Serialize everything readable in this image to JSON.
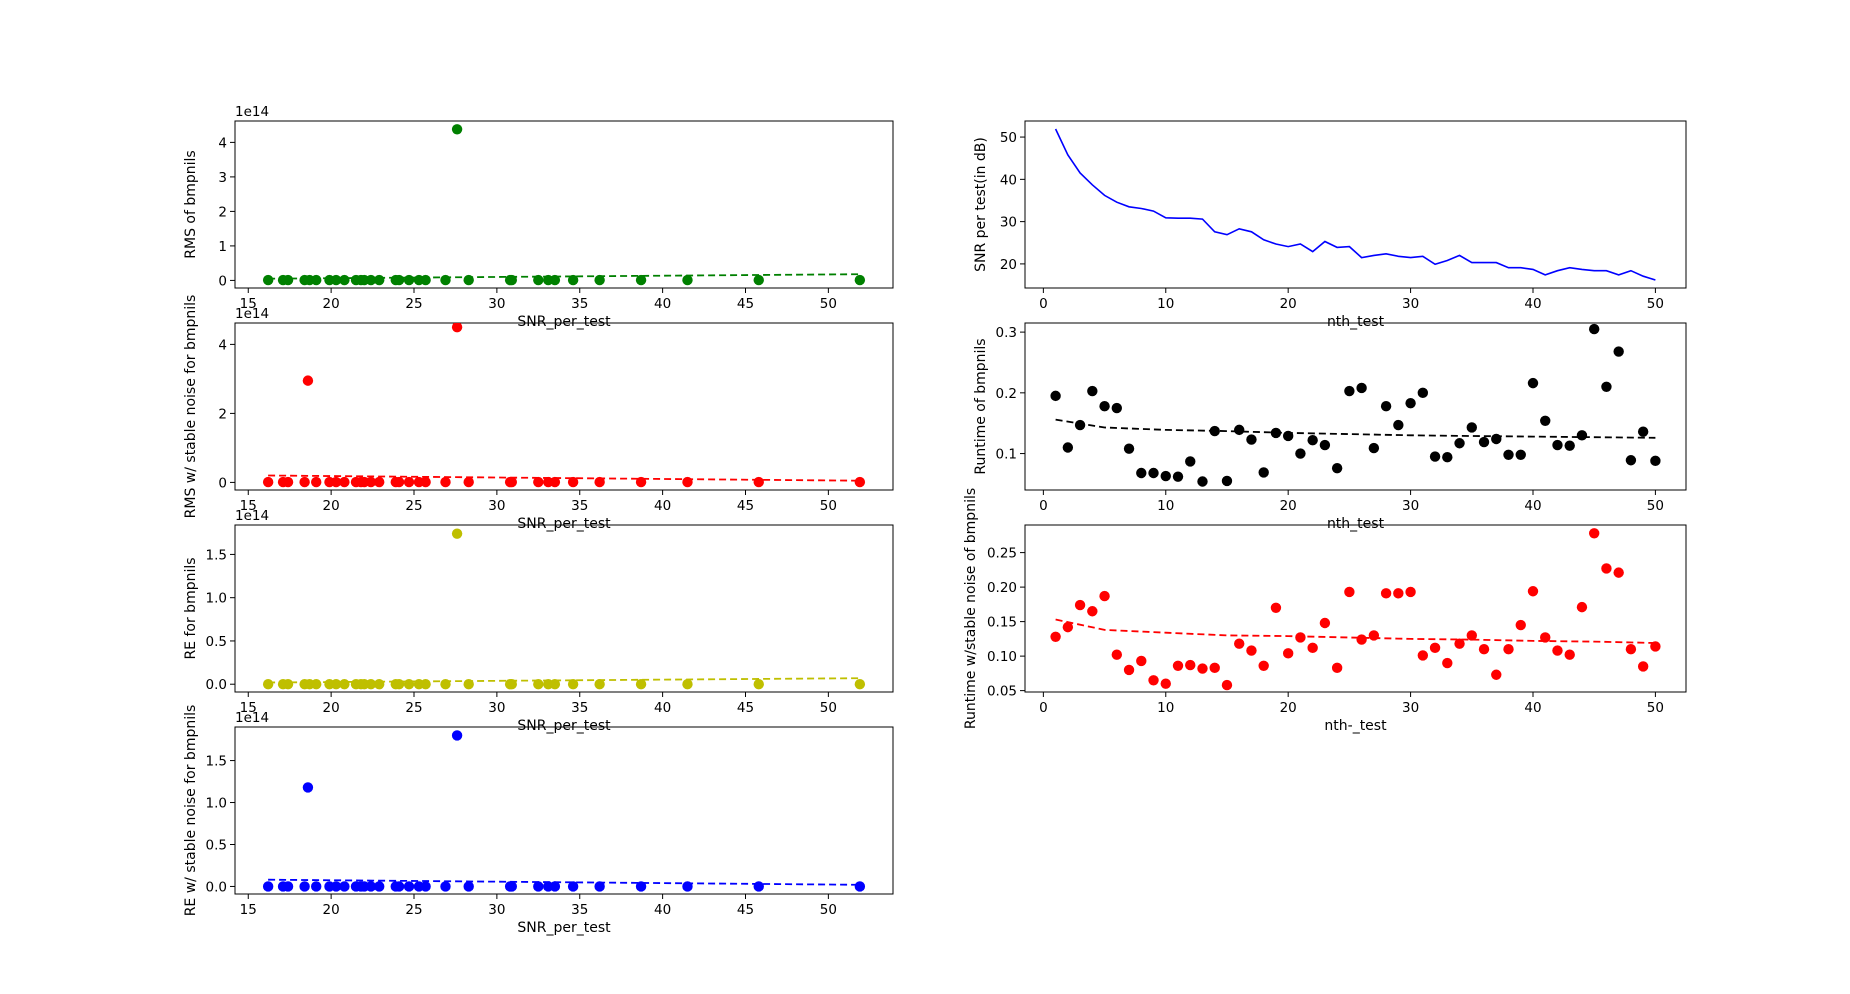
{
  "chart_data": [
    {
      "type": "scatter",
      "xlabel": "SNR_per_test",
      "ylabel": "RMS of bmpnils",
      "offset_text": "1e14",
      "xlim": [
        14.2,
        53.9
      ],
      "ylim": [
        -0.22,
        4.62
      ],
      "xticks": [
        15,
        20,
        25,
        30,
        35,
        40,
        45,
        50
      ],
      "yticks": [
        0,
        1,
        2,
        3,
        4
      ],
      "color": "#008000",
      "x": [
        16.2,
        17.1,
        17.4,
        18.4,
        18.7,
        19.1,
        19.9,
        20.3,
        20.8,
        21.5,
        21.8,
        22.0,
        22.4,
        22.9,
        23.9,
        24.1,
        24.7,
        25.3,
        25.7,
        26.9,
        27.6,
        28.3,
        30.8,
        30.9,
        32.5,
        33.1,
        33.5,
        34.6,
        36.2,
        38.7,
        41.5,
        45.8,
        51.9
      ],
      "y": [
        0.01,
        0.01,
        0.01,
        0.01,
        0.01,
        0.01,
        0.01,
        0.01,
        0.01,
        0.01,
        0.01,
        0.01,
        0.01,
        0.01,
        0.01,
        0.01,
        0.01,
        0.01,
        0.01,
        0.01,
        4.38,
        0.01,
        0.01,
        0.01,
        0.01,
        0.01,
        0.01,
        0.01,
        0.01,
        0.01,
        0.01,
        0.01,
        0.01
      ],
      "trend": {
        "x": [
          16.2,
          51.9
        ],
        "y": [
          0.05,
          0.18
        ]
      }
    },
    {
      "type": "scatter",
      "xlabel": "SNR_per_test",
      "ylabel": "RMS w/ stable noise for bmpnils",
      "offset_text": "1e14",
      "xlim": [
        14.2,
        53.9
      ],
      "ylim": [
        -0.22,
        4.62
      ],
      "xticks": [
        15,
        20,
        25,
        30,
        35,
        40,
        45,
        50
      ],
      "yticks": [
        0,
        2,
        4
      ],
      "color": "#ff0000",
      "x": [
        16.2,
        17.1,
        17.4,
        18.4,
        18.6,
        19.1,
        19.9,
        20.3,
        20.8,
        21.5,
        21.8,
        22.0,
        22.4,
        22.9,
        23.9,
        24.1,
        24.7,
        25.3,
        25.7,
        26.9,
        27.6,
        28.3,
        30.8,
        30.9,
        32.5,
        33.1,
        33.5,
        34.6,
        36.2,
        38.7,
        41.5,
        45.8,
        51.9
      ],
      "y": [
        0.01,
        0.01,
        0.01,
        0.01,
        2.95,
        0.01,
        0.01,
        0.01,
        0.01,
        0.01,
        0.01,
        0.01,
        0.01,
        0.01,
        0.01,
        0.01,
        0.01,
        0.01,
        0.01,
        0.01,
        4.5,
        0.01,
        0.01,
        0.01,
        0.01,
        0.01,
        0.01,
        0.01,
        0.01,
        0.01,
        0.01,
        0.01,
        0.01
      ],
      "trend": {
        "x": [
          16.2,
          51.9
        ],
        "y": [
          0.2,
          0.05
        ]
      }
    },
    {
      "type": "scatter",
      "xlabel": "SNR_per_test",
      "ylabel": "RE for bmpnils",
      "offset_text": "1e14",
      "xlim": [
        14.2,
        53.9
      ],
      "ylim": [
        -0.09,
        1.84
      ],
      "xticks": [
        15,
        20,
        25,
        30,
        35,
        40,
        45,
        50
      ],
      "yticks": [
        0.0,
        0.5,
        1.0,
        1.5
      ],
      "ytick_labels": [
        "0.0",
        "0.5",
        "1.0",
        "1.5"
      ],
      "color": "#bfbf00",
      "x": [
        16.2,
        17.1,
        17.4,
        18.4,
        18.7,
        19.1,
        19.9,
        20.3,
        20.8,
        21.5,
        21.8,
        22.0,
        22.4,
        22.9,
        23.9,
        24.1,
        24.7,
        25.3,
        25.7,
        26.9,
        27.6,
        28.3,
        30.8,
        30.9,
        32.5,
        33.1,
        33.5,
        34.6,
        36.2,
        38.7,
        41.5,
        45.8,
        51.9
      ],
      "y": [
        0.0,
        0.0,
        0.0,
        0.0,
        0.0,
        0.0,
        0.0,
        0.0,
        0.0,
        0.0,
        0.0,
        0.0,
        0.0,
        0.0,
        0.0,
        0.0,
        0.0,
        0.0,
        0.0,
        0.0,
        1.74,
        0.0,
        0.0,
        0.0,
        0.0,
        0.0,
        0.0,
        0.0,
        0.0,
        0.0,
        0.0,
        0.0,
        0.0
      ],
      "trend": {
        "x": [
          16.2,
          51.9
        ],
        "y": [
          0.02,
          0.07
        ]
      }
    },
    {
      "type": "scatter",
      "xlabel": "SNR_per_test",
      "ylabel": "RE w/ stable noise for bmpnils",
      "offset_text": "1e14",
      "xlim": [
        14.2,
        53.9
      ],
      "ylim": [
        -0.09,
        1.9
      ],
      "xticks": [
        15,
        20,
        25,
        30,
        35,
        40,
        45,
        50
      ],
      "yticks": [
        0.0,
        0.5,
        1.0,
        1.5
      ],
      "ytick_labels": [
        "0.0",
        "0.5",
        "1.0",
        "1.5"
      ],
      "color": "#0000ff",
      "x": [
        16.2,
        17.1,
        17.4,
        18.4,
        18.6,
        19.1,
        19.9,
        20.3,
        20.8,
        21.5,
        21.8,
        22.0,
        22.4,
        22.9,
        23.9,
        24.1,
        24.7,
        25.3,
        25.7,
        26.9,
        27.6,
        28.3,
        30.8,
        30.9,
        32.5,
        33.1,
        33.5,
        34.6,
        36.2,
        38.7,
        41.5,
        45.8,
        51.9
      ],
      "y": [
        0.0,
        0.0,
        0.0,
        0.0,
        1.18,
        0.0,
        0.0,
        0.0,
        0.0,
        0.0,
        0.0,
        0.0,
        0.0,
        0.0,
        0.0,
        0.0,
        0.0,
        0.0,
        0.0,
        0.0,
        1.8,
        0.0,
        0.0,
        0.0,
        0.0,
        0.0,
        0.0,
        0.0,
        0.0,
        0.0,
        0.0,
        0.0,
        0.0
      ],
      "trend": {
        "x": [
          16.2,
          51.9
        ],
        "y": [
          0.08,
          0.02
        ]
      }
    },
    {
      "type": "line",
      "xlabel": "nth_test",
      "ylabel": "SNR per test(in dB)",
      "xlim": [
        -1.5,
        52.5
      ],
      "ylim": [
        14.3,
        53.8
      ],
      "xticks": [
        0,
        10,
        20,
        30,
        40,
        50
      ],
      "yticks": [
        20,
        30,
        40,
        50
      ],
      "color": "#0000ff",
      "x": [
        1,
        2,
        3,
        4,
        5,
        6,
        7,
        8,
        9,
        10,
        11,
        12,
        13,
        14,
        15,
        16,
        17,
        18,
        19,
        20,
        21,
        22,
        23,
        24,
        25,
        26,
        27,
        28,
        29,
        30,
        31,
        32,
        33,
        34,
        35,
        36,
        37,
        38,
        39,
        40,
        41,
        42,
        43,
        44,
        45,
        46,
        47,
        48,
        49,
        50
      ],
      "y": [
        51.9,
        45.8,
        41.5,
        38.7,
        36.2,
        34.6,
        33.5,
        33.1,
        32.5,
        30.9,
        30.8,
        30.8,
        30.6,
        27.6,
        26.9,
        28.3,
        27.6,
        25.7,
        24.7,
        24.1,
        24.7,
        22.9,
        25.3,
        23.9,
        24.1,
        21.5,
        22.0,
        22.4,
        21.8,
        21.5,
        21.8,
        19.9,
        20.8,
        22.0,
        20.3,
        20.3,
        20.3,
        19.1,
        19.1,
        18.7,
        17.4,
        18.4,
        19.1,
        18.7,
        18.4,
        18.4,
        17.4,
        18.4,
        17.1,
        16.2
      ]
    },
    {
      "type": "scatter",
      "xlabel": "nth_test",
      "ylabel": "Runtime of bmpnils",
      "xlim": [
        -1.5,
        52.5
      ],
      "ylim": [
        0.04,
        0.315
      ],
      "xticks": [
        0,
        10,
        20,
        30,
        40,
        50
      ],
      "yticks": [
        0.1,
        0.2,
        0.3
      ],
      "ytick_labels": [
        "0.1",
        "0.2",
        "0.3"
      ],
      "color": "#000000",
      "x": [
        1,
        2,
        3,
        4,
        5,
        6,
        7,
        8,
        9,
        10,
        11,
        12,
        13,
        14,
        15,
        16,
        17,
        18,
        19,
        20,
        21,
        22,
        23,
        24,
        25,
        26,
        27,
        28,
        29,
        30,
        31,
        32,
        33,
        34,
        35,
        36,
        37,
        38,
        39,
        40,
        41,
        42,
        43,
        44,
        45,
        46,
        47,
        48,
        49,
        50
      ],
      "y": [
        0.195,
        0.11,
        0.147,
        0.203,
        0.178,
        0.175,
        0.108,
        0.068,
        0.068,
        0.063,
        0.062,
        0.087,
        0.054,
        0.137,
        0.055,
        0.139,
        0.123,
        0.069,
        0.134,
        0.129,
        0.1,
        0.122,
        0.114,
        0.076,
        0.203,
        0.208,
        0.109,
        0.178,
        0.147,
        0.183,
        0.2,
        0.095,
        0.094,
        0.117,
        0.143,
        0.119,
        0.124,
        0.098,
        0.098,
        0.216,
        0.154,
        0.114,
        0.113,
        0.13,
        0.305,
        0.21,
        0.268,
        0.089,
        0.136,
        0.088
      ],
      "trend": {
        "x": [
          1,
          5,
          10,
          15,
          20,
          25,
          30,
          35,
          40,
          45,
          50
        ],
        "y": [
          0.156,
          0.143,
          0.139,
          0.137,
          0.134,
          0.132,
          0.13,
          0.129,
          0.128,
          0.127,
          0.126
        ]
      }
    },
    {
      "type": "scatter",
      "xlabel": "nth-_test",
      "ylabel": "Runtime w/stable noise of bmpnils",
      "xlim": [
        -1.5,
        52.5
      ],
      "ylim": [
        0.048,
        0.29
      ],
      "xticks": [
        0,
        10,
        20,
        30,
        40,
        50
      ],
      "yticks": [
        0.05,
        0.1,
        0.15,
        0.2,
        0.25
      ],
      "ytick_labels": [
        "0.05",
        "0.10",
        "0.15",
        "0.20",
        "0.25"
      ],
      "color": "#ff0000",
      "x": [
        1,
        2,
        3,
        4,
        5,
        6,
        7,
        8,
        9,
        10,
        11,
        12,
        13,
        14,
        15,
        16,
        17,
        18,
        19,
        20,
        21,
        22,
        23,
        24,
        25,
        26,
        27,
        28,
        29,
        30,
        31,
        32,
        33,
        34,
        35,
        36,
        37,
        38,
        39,
        40,
        41,
        42,
        43,
        44,
        45,
        46,
        47,
        48,
        49,
        50
      ],
      "y": [
        0.128,
        0.142,
        0.174,
        0.165,
        0.187,
        0.102,
        0.08,
        0.093,
        0.065,
        0.06,
        0.086,
        0.087,
        0.082,
        0.083,
        0.058,
        0.118,
        0.108,
        0.086,
        0.17,
        0.104,
        0.127,
        0.112,
        0.148,
        0.083,
        0.193,
        0.124,
        0.13,
        0.191,
        0.191,
        0.193,
        0.101,
        0.112,
        0.09,
        0.118,
        0.13,
        0.11,
        0.073,
        0.11,
        0.145,
        0.194,
        0.127,
        0.108,
        0.102,
        0.171,
        0.278,
        0.227,
        0.221,
        0.11,
        0.085,
        0.114
      ],
      "trend": {
        "x": [
          1,
          5,
          10,
          15,
          20,
          25,
          30,
          35,
          40,
          45,
          50
        ],
        "y": [
          0.153,
          0.138,
          0.134,
          0.13,
          0.129,
          0.127,
          0.125,
          0.124,
          0.122,
          0.121,
          0.119
        ]
      }
    }
  ]
}
